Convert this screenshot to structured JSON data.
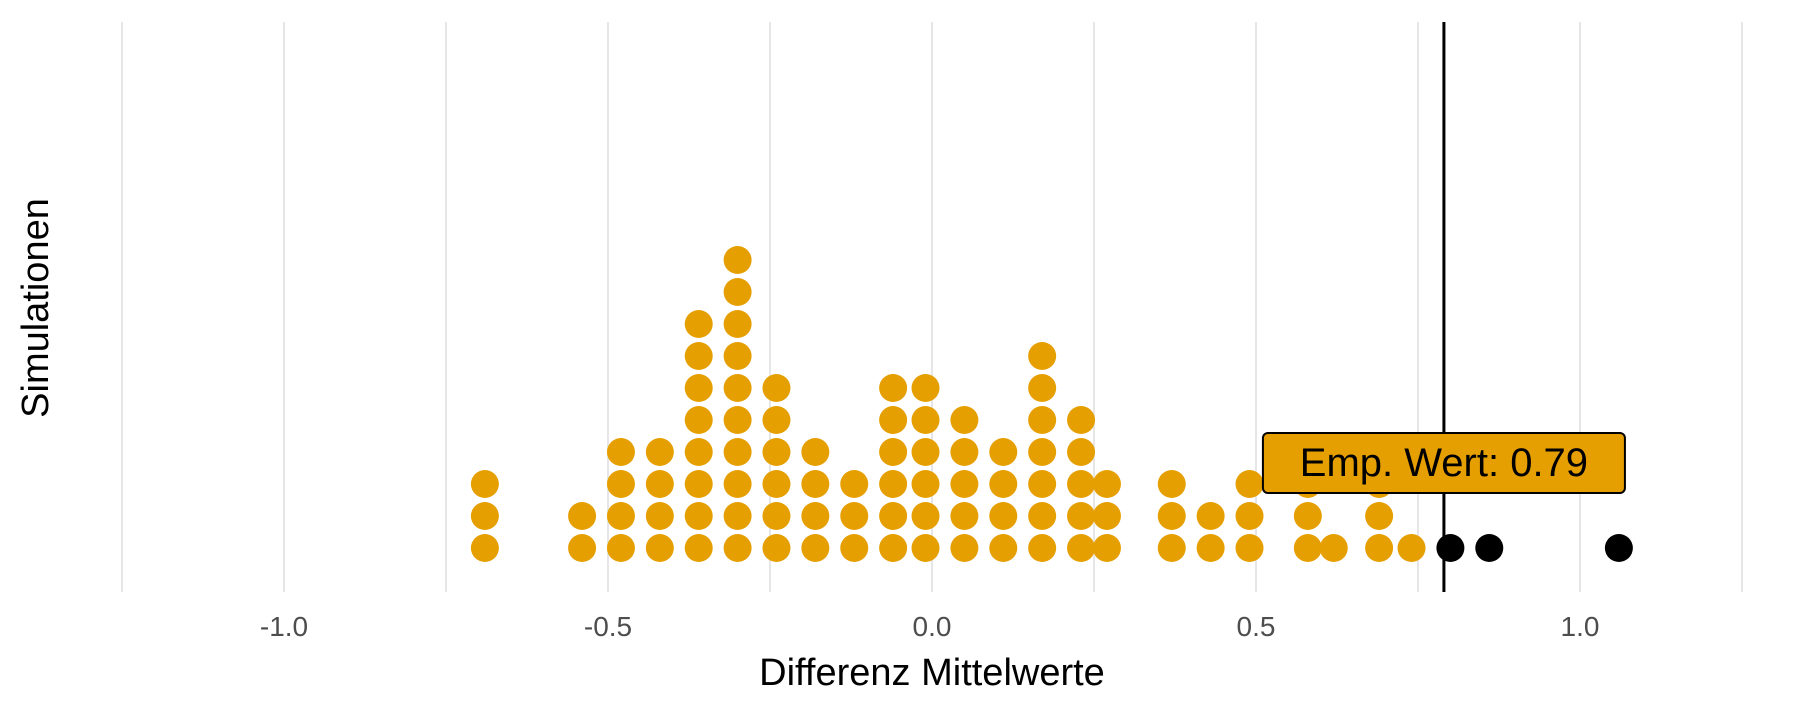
{
  "chart_data": {
    "type": "dotplot",
    "xlabel": "Differenz Mittelwerte",
    "ylabel": "Simulationen",
    "xlim": [
      -1.25,
      1.25
    ],
    "x_ticks": [
      {
        "value": -1.0,
        "label": "-1.0"
      },
      {
        "value": -0.5,
        "label": "-0.5"
      },
      {
        "value": 0.0,
        "label": "0.0"
      },
      {
        "value": 0.5,
        "label": "0.5"
      },
      {
        "value": 1.0,
        "label": "1.0"
      }
    ],
    "grid": true,
    "reference_value": 0.79,
    "annotation_label": "Emp. Wert: 0.79",
    "colors": {
      "below": "#E69F00",
      "at_or_above": "#000000",
      "grid": "#e6e6e6",
      "reference_line": "#000000"
    },
    "stacks": [
      {
        "x": -0.69,
        "count": 3
      },
      {
        "x": -0.54,
        "count": 2
      },
      {
        "x": -0.48,
        "count": 4
      },
      {
        "x": -0.42,
        "count": 4
      },
      {
        "x": -0.36,
        "count": 8
      },
      {
        "x": -0.3,
        "count": 10
      },
      {
        "x": -0.24,
        "count": 6
      },
      {
        "x": -0.18,
        "count": 4
      },
      {
        "x": -0.12,
        "count": 3
      },
      {
        "x": -0.06,
        "count": 6
      },
      {
        "x": -0.01,
        "count": 6
      },
      {
        "x": 0.05,
        "count": 5
      },
      {
        "x": 0.11,
        "count": 4
      },
      {
        "x": 0.17,
        "count": 7
      },
      {
        "x": 0.23,
        "count": 5
      },
      {
        "x": 0.27,
        "count": 3
      },
      {
        "x": 0.37,
        "count": 3
      },
      {
        "x": 0.43,
        "count": 2
      },
      {
        "x": 0.49,
        "count": 3
      },
      {
        "x": 0.58,
        "count": 3
      },
      {
        "x": 0.62,
        "count": 1
      },
      {
        "x": 0.69,
        "count": 3
      },
      {
        "x": 0.74,
        "count": 1
      },
      {
        "x": 0.8,
        "count": 1
      },
      {
        "x": 0.86,
        "count": 1
      },
      {
        "x": 1.06,
        "count": 1
      }
    ]
  }
}
